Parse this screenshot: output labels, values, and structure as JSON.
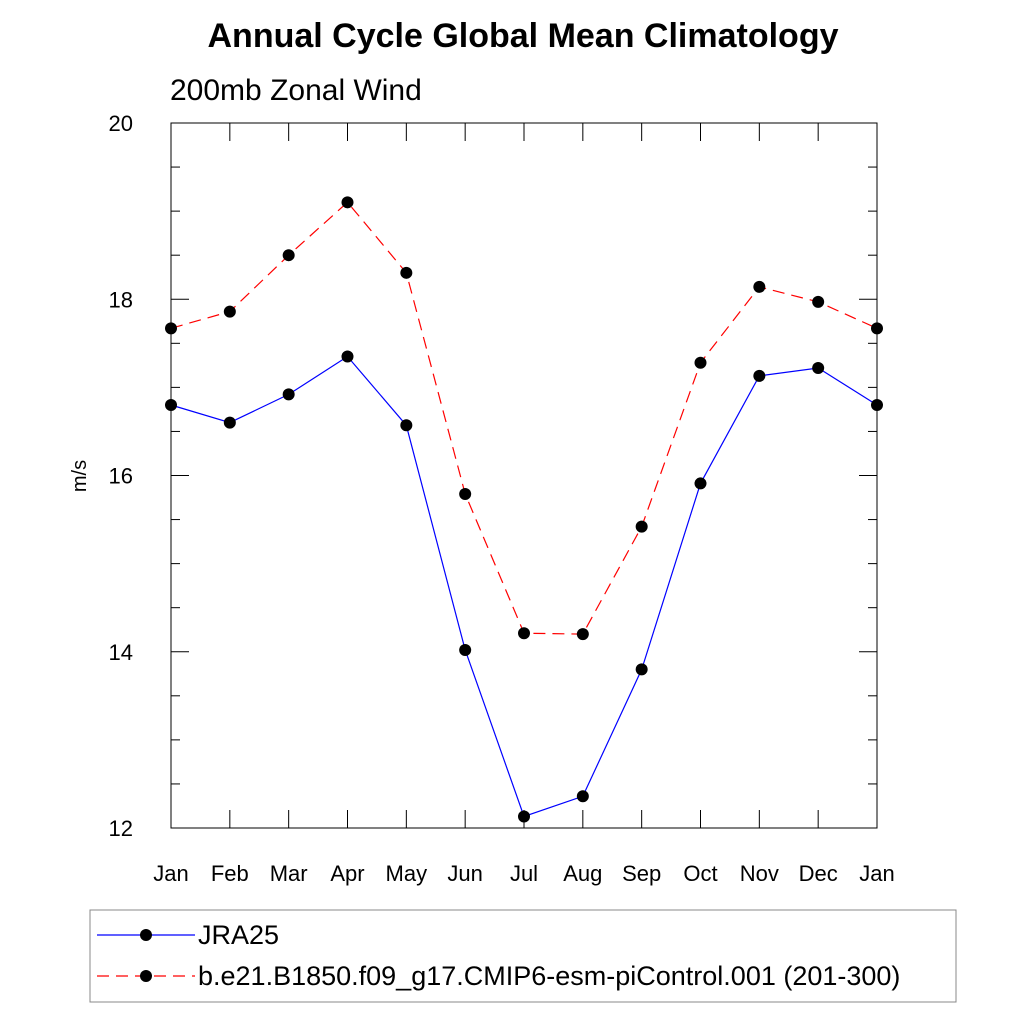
{
  "chart_data": {
    "type": "line",
    "title": "Annual Cycle Global Mean Climatology",
    "subtitle": "200mb Zonal Wind",
    "xlabel": "",
    "ylabel": "m/s",
    "categories": [
      "Jan",
      "Feb",
      "Mar",
      "Apr",
      "May",
      "Jun",
      "Jul",
      "Aug",
      "Sep",
      "Oct",
      "Nov",
      "Dec",
      "Jan"
    ],
    "ylim": [
      12,
      20
    ],
    "yticks": [
      "12",
      "14",
      "16",
      "18",
      "20"
    ],
    "series": [
      {
        "name": "JRA25",
        "color": "#0000ff",
        "dash": "solid",
        "marker": "circle",
        "values": [
          16.8,
          16.6,
          16.92,
          17.35,
          16.57,
          14.02,
          12.13,
          12.36,
          13.8,
          15.91,
          17.13,
          17.22,
          16.8
        ]
      },
      {
        "name": "b.e21.B1850.f09_g17.CMIP6-esm-piControl.001 (201-300)",
        "color": "#ff0000",
        "dash": "dashed",
        "marker": "circle",
        "values": [
          17.67,
          17.86,
          18.5,
          19.1,
          18.3,
          15.79,
          14.21,
          14.2,
          15.42,
          17.28,
          18.14,
          17.97,
          17.67
        ]
      }
    ],
    "grid": false,
    "legend_position": "bottom"
  }
}
